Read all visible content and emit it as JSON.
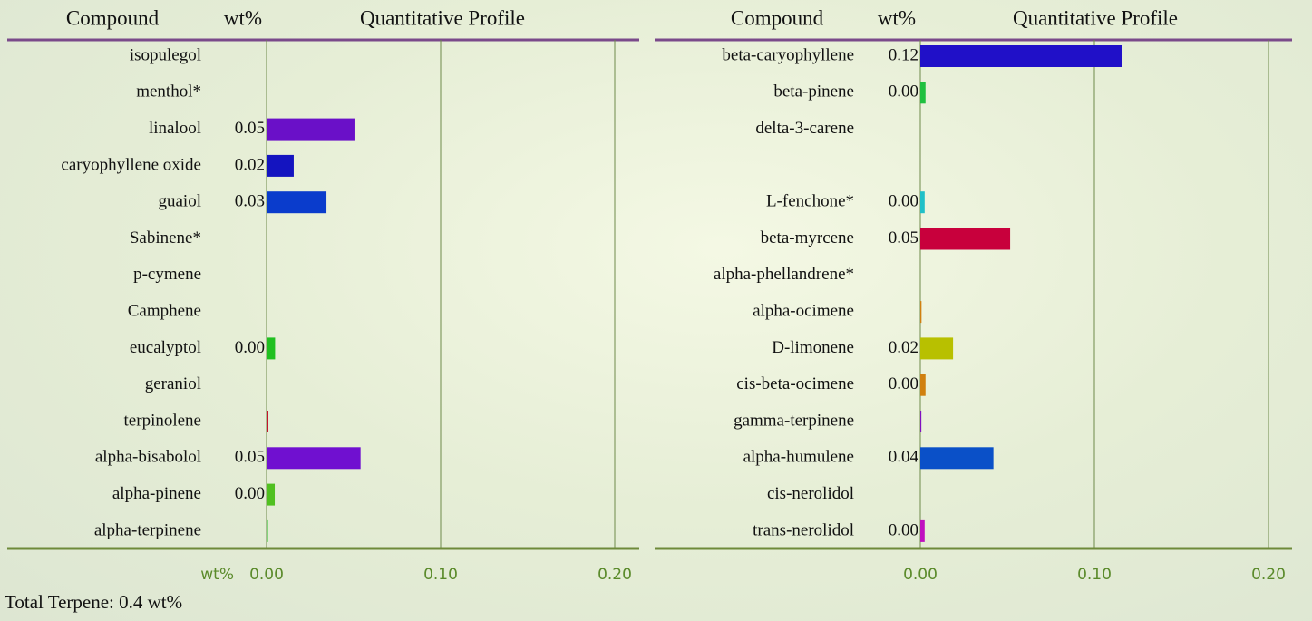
{
  "chart_data": [
    {
      "type": "bar",
      "orientation": "horizontal",
      "headers": [
        "Compound",
        "wt%",
        "Quantitative Profile"
      ],
      "xlabel": "wt%",
      "categories": [
        "isopulegol",
        "menthol*",
        "linalool",
        "caryophyllene oxide",
        "guaiol",
        "Sabinene*",
        "p-cymene",
        "Camphene",
        "eucalyptol",
        "geraniol",
        "terpinolene",
        "alpha-bisabolol",
        "alpha-pinene",
        "alpha-terpinene"
      ],
      "values": [
        null,
        null,
        0.0505,
        0.0156,
        0.0344,
        null,
        null,
        0.0005,
        0.0049,
        null,
        0.001,
        0.054,
        0.0047,
        0.0008
      ],
      "value_labels": [
        null,
        null,
        "0.05",
        "0.02",
        "0.03",
        null,
        null,
        null,
        "0.00",
        null,
        null,
        "0.05",
        "0.00",
        null
      ],
      "colors": [
        null,
        null,
        "#6a10c8",
        "#1414c0",
        "#0a3ccc",
        null,
        null,
        "#20c0c0",
        "#20c020",
        null,
        "#c00020",
        "#7010d0",
        "#50c020",
        "#30c030"
      ],
      "xlim": [
        0,
        0.2
      ],
      "xticks": [
        {
          "value": 0,
          "label": "0.00"
        },
        {
          "value": 0.1,
          "label": "0.10"
        },
        {
          "value": 0.2,
          "label": "0.20"
        }
      ],
      "grid": true
    },
    {
      "type": "bar",
      "orientation": "horizontal",
      "headers": [
        "Compound",
        "wt%",
        "Quantitative Profile"
      ],
      "categories": [
        "beta-caryophyllene",
        "beta-pinene",
        "delta-3-carene",
        null,
        "L-fenchone*",
        "beta-myrcene",
        "alpha-phellandrene*",
        "alpha-ocimene",
        "D-limonene",
        "cis-beta-ocimene",
        "gamma-terpinene",
        "alpha-humulene",
        "cis-nerolidol",
        "trans-nerolidol"
      ],
      "values": [
        0.116,
        0.003,
        null,
        null,
        0.0025,
        0.0516,
        null,
        0.0007,
        0.0188,
        0.003,
        0.0006,
        0.042,
        null,
        0.0025
      ],
      "value_labels": [
        "0.12",
        "0.00",
        null,
        null,
        "0.00",
        "0.05",
        null,
        null,
        "0.02",
        "0.00",
        null,
        "0.04",
        null,
        "0.00"
      ],
      "colors": [
        "#2010c8",
        "#20c040",
        null,
        null,
        "#20c0c8",
        "#c8003c",
        null,
        "#d08010",
        "#b8c000",
        "#d08010",
        "#8010c0",
        "#0a50c8",
        null,
        "#c010c0"
      ],
      "xlim": [
        0,
        0.2
      ],
      "xticks": [
        {
          "value": 0,
          "label": "0.00"
        },
        {
          "value": 0.1,
          "label": "0.10"
        },
        {
          "value": 0.2,
          "label": "0.20"
        }
      ],
      "grid": true
    }
  ],
  "total": "Total Terpene: 0.4 wt%"
}
